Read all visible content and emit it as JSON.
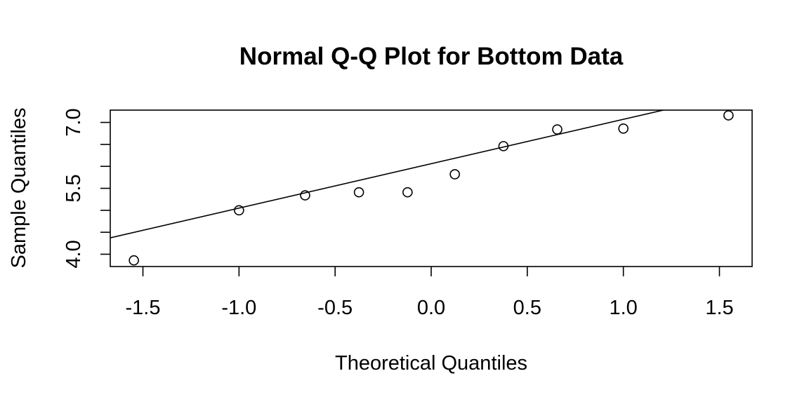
{
  "chart_data": {
    "type": "scatter",
    "title": "Normal Q-Q Plot for Bottom Data",
    "xlabel": "Theoretical Quantiles",
    "ylabel": "Sample Quantiles",
    "xlim": [
      -1.67,
      1.67
    ],
    "ylim": [
      3.72,
      7.28
    ],
    "xticks": [
      -1.5,
      -1.0,
      -0.5,
      0.0,
      0.5,
      1.0,
      1.5
    ],
    "xtick_labels": [
      "-1.5",
      "-1.0",
      "-0.5",
      "0.0",
      "0.5",
      "1.0",
      "1.5"
    ],
    "yticks": [
      4.0,
      4.5,
      5.0,
      5.5,
      6.0,
      6.5,
      7.0
    ],
    "ytick_labels": [
      "4.0",
      "",
      "",
      "5.5",
      "",
      "",
      "7.0"
    ],
    "points": [
      {
        "x": -1.547,
        "y": 3.86
      },
      {
        "x": -1.0,
        "y": 5.0
      },
      {
        "x": -0.656,
        "y": 5.34
      },
      {
        "x": -0.376,
        "y": 5.41
      },
      {
        "x": -0.123,
        "y": 5.41
      },
      {
        "x": 0.123,
        "y": 5.82
      },
      {
        "x": 0.376,
        "y": 6.46
      },
      {
        "x": 0.656,
        "y": 6.84
      },
      {
        "x": 1.0,
        "y": 6.86
      },
      {
        "x": 1.547,
        "y": 7.16
      }
    ],
    "reference_line": {
      "intercept": 6.06,
      "slope": 1.01
    },
    "grid": false,
    "legend": "none"
  }
}
